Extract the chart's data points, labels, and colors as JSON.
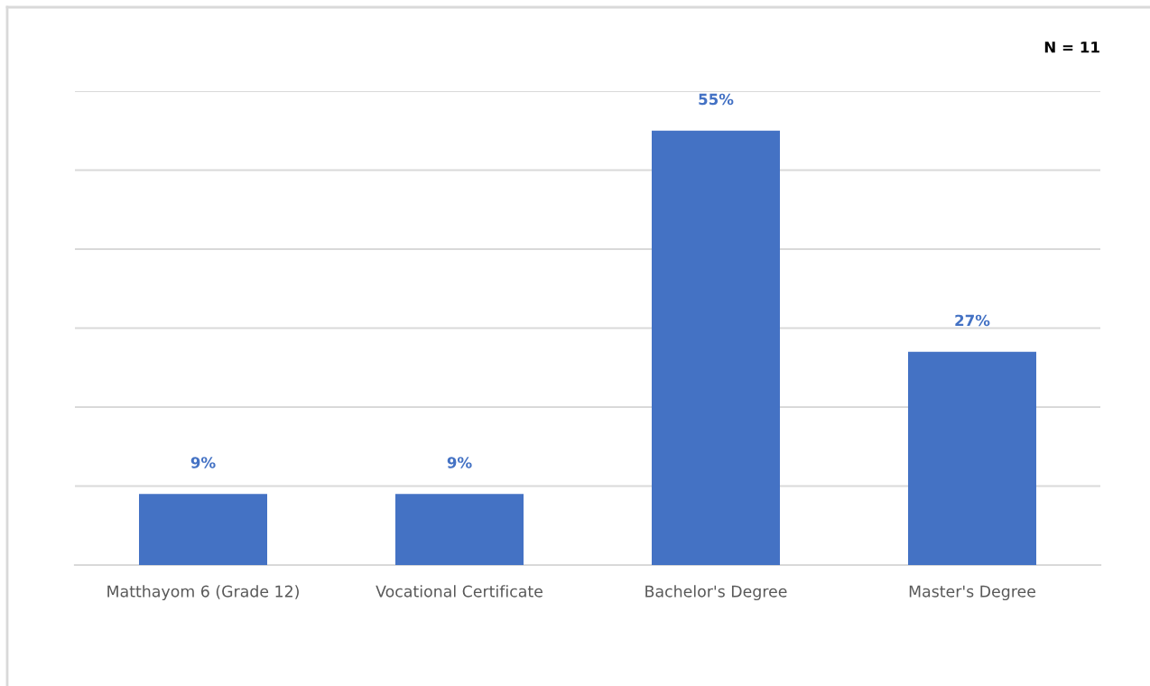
{
  "chart_data": {
    "type": "bar",
    "categories": [
      "Matthayom 6 (Grade 12)",
      "Vocational Certificate",
      "Bachelor's Degree",
      "Master's Degree"
    ],
    "values": [
      9,
      9,
      55,
      27
    ],
    "color": "#4472c4",
    "value_labels": [
      "9%",
      "9%",
      "55%",
      "27%"
    ],
    "ylim": [
      0,
      60
    ],
    "yticks": [
      {
        "value": 0,
        "label": null
      },
      {
        "value": 10,
        "label": null
      },
      {
        "value": 20,
        "label": null
      },
      {
        "value": 30,
        "label": null
      },
      {
        "value": 40,
        "label": null
      },
      {
        "value": 50,
        "label": null
      },
      {
        "value": 60,
        "label": null
      }
    ],
    "grid": "y",
    "tick_labels": "x",
    "annotations": [
      "N = 11"
    ]
  }
}
